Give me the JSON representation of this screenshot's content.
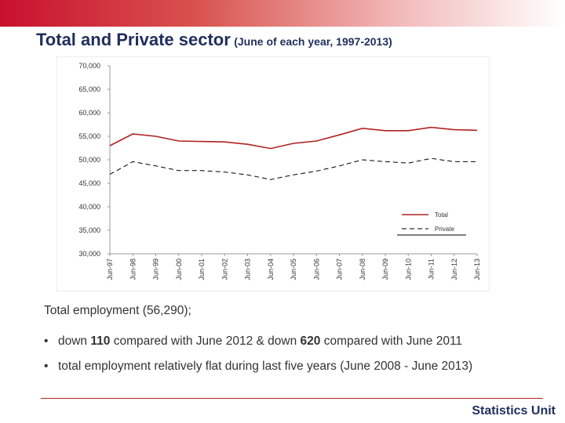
{
  "slide": {
    "title": "Total and Private sector",
    "subtitle": "(June of each year, 1997-2013)",
    "summary": "Total employment (56,290);",
    "bullets": [
      {
        "pre": "down ",
        "b1": "110",
        "mid": " compared with June 2012 & down ",
        "b2": "620",
        "post": " compared with June 2011"
      },
      {
        "pre": "total employment relatively flat during last five years (June 2008 - June 2013)",
        "b1": "",
        "mid": "",
        "b2": "",
        "post": ""
      }
    ],
    "footer": "Statistics Unit"
  },
  "colors": {
    "total": "#b22222",
    "private": "#000000",
    "accent": "#c8102e"
  },
  "chart_data": {
    "type": "line",
    "x": [
      "Jun-97",
      "Jun-98",
      "Jun-99",
      "Jun-00",
      "Jun-01",
      "Jun-02",
      "Jun-03",
      "Jun-04",
      "Jun-05",
      "Jun-06",
      "Jun-07",
      "Jun-08",
      "Jun-09",
      "Jun-10",
      "Jun-11",
      "Jun-12",
      "Jun-13"
    ],
    "yticks": [
      "30,000",
      "35,000",
      "40,000",
      "45,000",
      "50,000",
      "55,000",
      "60,000",
      "65,000",
      "70,000"
    ],
    "ylim": [
      30000,
      70000
    ],
    "legend_position": "bottom-right",
    "grid": false,
    "series": [
      {
        "name": "Total",
        "style": "solid",
        "values": [
          53000,
          55500,
          55000,
          54000,
          53900,
          53800,
          53300,
          52400,
          53500,
          54000,
          55300,
          56700,
          56200,
          56200,
          56900,
          56400,
          56290
        ]
      },
      {
        "name": "Private",
        "style": "dashed",
        "values": [
          46900,
          49600,
          48700,
          47700,
          47700,
          47400,
          46800,
          45800,
          46800,
          47600,
          48700,
          50000,
          49600,
          49300,
          50300,
          49600,
          49600
        ]
      }
    ]
  }
}
